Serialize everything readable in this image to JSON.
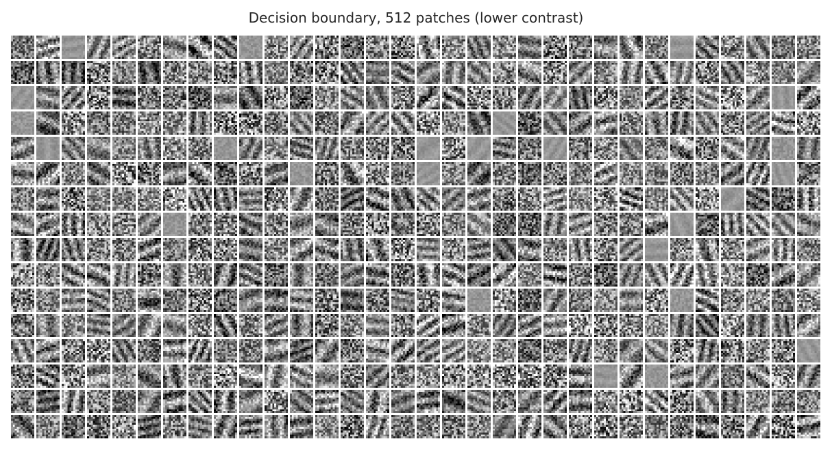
{
  "figure": {
    "title": "Decision boundary, 512 patches (lower contrast)"
  },
  "grid": {
    "patch_count": 512,
    "rows": 16,
    "cols": 32,
    "patch_style": "grayscale noise texture",
    "background_color": "#ffffff",
    "mid_gray": "#808080"
  }
}
